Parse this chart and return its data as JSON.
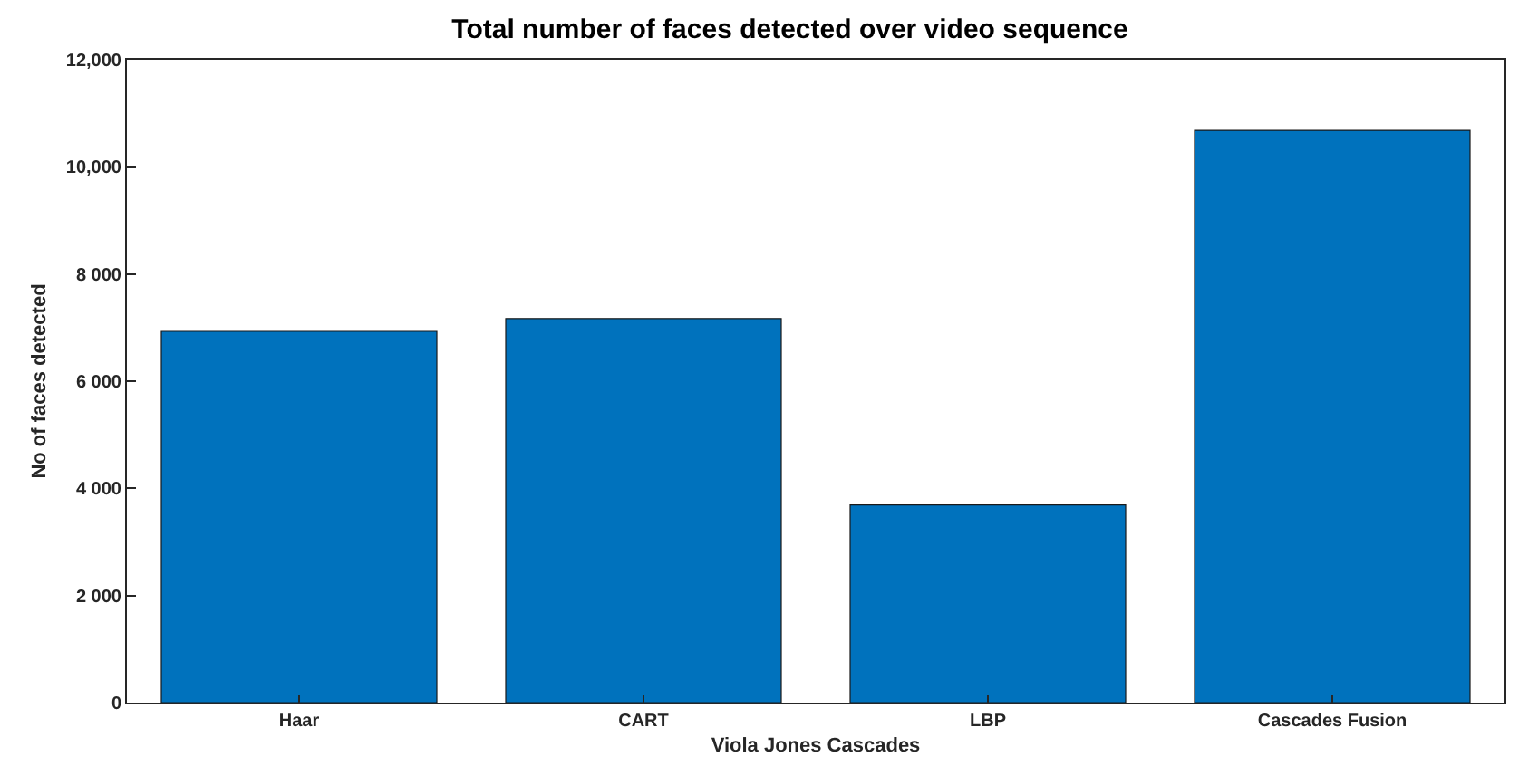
{
  "chart_data": {
    "type": "bar",
    "title": "Total number of faces detected over video sequence",
    "xlabel": "Viola Jones Cascades",
    "ylabel": "No of faces detected",
    "categories": [
      "Haar",
      "CART",
      "LBP",
      "Cascades Fusion"
    ],
    "values": [
      6930,
      7170,
      3690,
      10680
    ],
    "color": "#0072bd",
    "ylim": [
      0,
      12000
    ],
    "yticks": [
      0,
      {
        "value": 2000,
        "label": "2 000"
      },
      {
        "value": 4000,
        "label": "4 000"
      },
      {
        "value": 6000,
        "label": "6 000"
      },
      {
        "value": 8000,
        "label": "8 000"
      },
      {
        "value": 10000,
        "label": "10,000"
      },
      {
        "value": 12000,
        "label": "12,000"
      }
    ],
    "grid": false,
    "legend": false
  }
}
